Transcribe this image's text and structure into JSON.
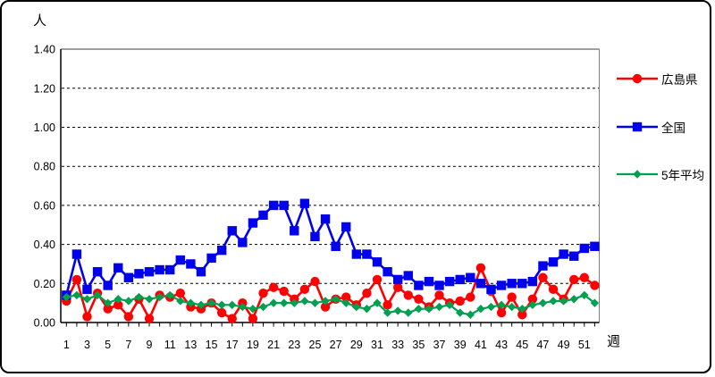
{
  "page": {
    "background": "#FFFFFF",
    "frame_border_color": "#000000"
  },
  "chart_data": {
    "type": "line",
    "y_axis_unit": "人",
    "x_axis_unit": "週",
    "ylim": [
      0,
      1.4
    ],
    "y_ticks": [
      "0.00",
      "0.20",
      "0.40",
      "0.60",
      "0.80",
      "1.00",
      "1.20",
      "1.40"
    ],
    "x_tick_labels": [
      "1",
      "3",
      "5",
      "7",
      "9",
      "11",
      "13",
      "15",
      "17",
      "19",
      "21",
      "23",
      "25",
      "27",
      "29",
      "31",
      "33",
      "35",
      "37",
      "39",
      "41",
      "43",
      "45",
      "47",
      "49",
      "51"
    ],
    "weeks": [
      1,
      2,
      3,
      4,
      5,
      6,
      7,
      8,
      9,
      10,
      11,
      12,
      13,
      14,
      15,
      16,
      17,
      18,
      19,
      20,
      21,
      22,
      23,
      24,
      25,
      26,
      27,
      28,
      29,
      30,
      31,
      32,
      33,
      34,
      35,
      36,
      37,
      38,
      39,
      40,
      41,
      42,
      43,
      44,
      45,
      46,
      47,
      48,
      49,
      50,
      51,
      52
    ],
    "grid": "horizontal-dashed",
    "legend_position": "right",
    "series": [
      {
        "name": "広島県",
        "color": "#FF0000",
        "marker": "circle",
        "values": [
          0.11,
          0.22,
          0.03,
          0.15,
          0.07,
          0.09,
          0.03,
          0.12,
          0.02,
          0.14,
          0.13,
          0.15,
          0.08,
          0.07,
          0.1,
          0.05,
          0.02,
          0.1,
          0.02,
          0.15,
          0.18,
          0.16,
          0.12,
          0.17,
          0.21,
          0.08,
          0.12,
          0.13,
          0.09,
          0.15,
          0.22,
          0.09,
          0.18,
          0.14,
          0.12,
          0.08,
          0.14,
          0.1,
          0.11,
          0.13,
          0.28,
          0.16,
          0.05,
          0.13,
          0.04,
          0.12,
          0.23,
          0.17,
          0.12,
          0.22,
          0.23,
          0.19
        ]
      },
      {
        "name": "全国",
        "color": "#0000EE",
        "marker": "square",
        "values": [
          0.14,
          0.35,
          0.17,
          0.26,
          0.19,
          0.28,
          0.23,
          0.25,
          0.26,
          0.27,
          0.27,
          0.32,
          0.3,
          0.26,
          0.33,
          0.37,
          0.47,
          0.41,
          0.51,
          0.55,
          0.6,
          0.6,
          0.47,
          0.61,
          0.44,
          0.53,
          0.39,
          0.49,
          0.35,
          0.35,
          0.31,
          0.26,
          0.22,
          0.24,
          0.19,
          0.21,
          0.19,
          0.21,
          0.22,
          0.23,
          0.2,
          0.17,
          0.19,
          0.2,
          0.2,
          0.21,
          0.29,
          0.31,
          0.35,
          0.34,
          0.38,
          0.39
        ]
      },
      {
        "name": "5年平均",
        "color": "#00A050",
        "marker": "diamond",
        "values": [
          0.13,
          0.14,
          0.12,
          0.14,
          0.1,
          0.12,
          0.11,
          0.13,
          0.12,
          0.13,
          0.14,
          0.11,
          0.1,
          0.09,
          0.1,
          0.09,
          0.09,
          0.08,
          0.07,
          0.08,
          0.1,
          0.1,
          0.1,
          0.11,
          0.1,
          0.11,
          0.12,
          0.1,
          0.08,
          0.07,
          0.1,
          0.05,
          0.06,
          0.05,
          0.07,
          0.07,
          0.08,
          0.09,
          0.05,
          0.04,
          0.07,
          0.08,
          0.09,
          0.08,
          0.07,
          0.09,
          0.1,
          0.11,
          0.11,
          0.12,
          0.14,
          0.1
        ]
      }
    ]
  }
}
